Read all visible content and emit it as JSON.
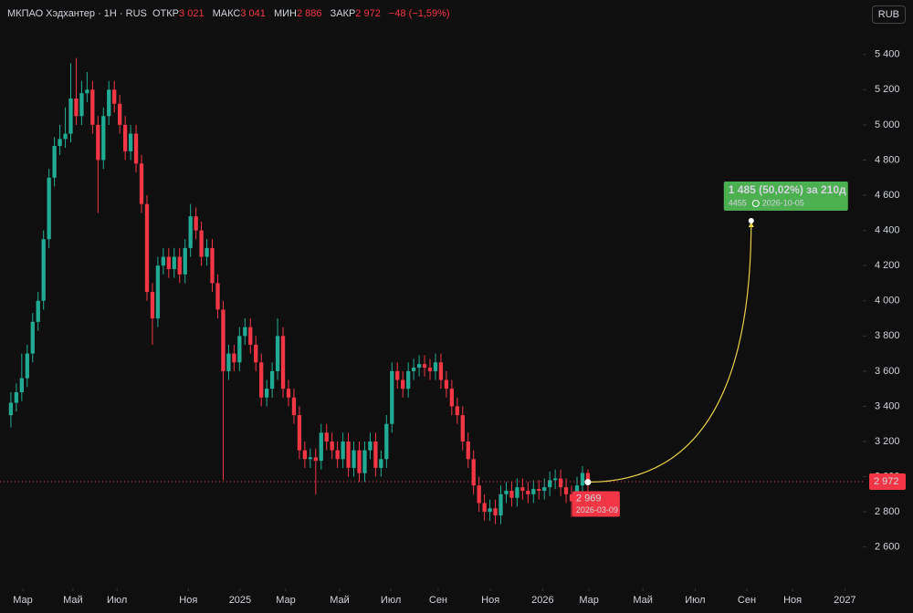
{
  "chart_data": {
    "type": "candlestick",
    "header": {
      "symbol": "МКПАО Хэдхантер · 1Н · RUS",
      "open_label": "ОТКР",
      "open": "3 021",
      "high_label": "МАКС",
      "high": "3 041",
      "low_label": "МИН",
      "low": "2 886",
      "close_label": "ЗАКР",
      "close": "2 972",
      "change": "−48 (−1,59%)"
    },
    "currency": "RUB",
    "up_color": "#22ab94",
    "down_color": "#f23645",
    "open": [
      3350,
      3420,
      3480,
      3560,
      3700,
      3880,
      4000,
      4350,
      4700,
      4880,
      4920,
      4950,
      5150,
      5050,
      5180,
      5200,
      5000,
      4800,
      5050,
      5200,
      5120,
      5000,
      4850,
      4950,
      4780,
      4550,
      4050,
      3900,
      4200,
      4250,
      4180,
      4250,
      4150,
      4300,
      4480,
      4400,
      4250,
      4300,
      4100,
      3950,
      3600,
      3700,
      3650,
      3800,
      3850,
      3750,
      3650,
      3450,
      3500,
      3600,
      3800,
      3500,
      3450,
      3350,
      3150,
      3100,
      3110,
      3090,
      3250,
      3200,
      3150,
      3100,
      3200,
      3050,
      3150,
      3020,
      3150,
      3200,
      3050,
      3100,
      3300,
      3600,
      3550,
      3500,
      3600,
      3620,
      3640,
      3620,
      3600,
      3650,
      3550,
      3500,
      3400,
      3350,
      3200,
      3100,
      2950,
      2850,
      2800,
      2820,
      2780,
      2900,
      2920,
      2880,
      2940,
      2920,
      2900,
      2930,
      2920,
      2940,
      2980,
      2990,
      2940,
      2900,
      2860,
      2950,
      3021
    ],
    "high": [
      3480,
      3530,
      3700,
      3750,
      3930,
      4050,
      4400,
      4750,
      4930,
      5000,
      5100,
      5350,
      5380,
      5250,
      5300,
      5250,
      5050,
      5100,
      5250,
      5250,
      5170,
      5050,
      5000,
      5000,
      4830,
      4600,
      4100,
      4250,
      4300,
      4300,
      4300,
      4300,
      4350,
      4550,
      4530,
      4450,
      4350,
      4350,
      4150,
      4000,
      3750,
      3750,
      3850,
      3900,
      3900,
      3800,
      3700,
      3550,
      3650,
      3900,
      3850,
      3550,
      3500,
      3400,
      3200,
      3160,
      3160,
      3300,
      3300,
      3250,
      3200,
      3250,
      3250,
      3200,
      3200,
      3200,
      3250,
      3250,
      3150,
      3350,
      3650,
      3650,
      3600,
      3650,
      3670,
      3690,
      3690,
      3670,
      3700,
      3700,
      3600,
      3550,
      3450,
      3400,
      3250,
      3150,
      3000,
      2900,
      2870,
      2870,
      2950,
      2970,
      2970,
      2990,
      2990,
      2970,
      2980,
      2980,
      2990,
      3030,
      3040,
      3040,
      2990,
      2950,
      3000,
      3060,
      3041
    ],
    "low": [
      3280,
      3370,
      3430,
      3510,
      3650,
      3830,
      3950,
      4300,
      4650,
      4830,
      4870,
      4900,
      5000,
      5000,
      5130,
      4950,
      4500,
      4750,
      5000,
      5070,
      4950,
      4800,
      4800,
      4730,
      4500,
      4000,
      3750,
      3850,
      4150,
      4130,
      4130,
      4100,
      4100,
      4250,
      4350,
      4200,
      4200,
      4050,
      3900,
      2980,
      3550,
      3600,
      3600,
      3750,
      3700,
      3600,
      3400,
      3400,
      3450,
      3550,
      3450,
      3400,
      3300,
      3100,
      3050,
      3050,
      2900,
      3040,
      3150,
      3100,
      3050,
      3050,
      3000,
      3000,
      2970,
      2970,
      3100,
      3000,
      3000,
      3050,
      3250,
      3500,
      3450,
      3450,
      3550,
      3570,
      3570,
      3550,
      3550,
      3500,
      3450,
      3350,
      3300,
      3150,
      3050,
      2900,
      2800,
      2750,
      2750,
      2730,
      2730,
      2850,
      2830,
      2830,
      2870,
      2850,
      2850,
      2870,
      2870,
      2890,
      2930,
      2890,
      2850,
      2770,
      2810,
      2900,
      2886
    ],
    "close": [
      3420,
      3480,
      3560,
      3700,
      3880,
      4000,
      4350,
      4700,
      4880,
      4920,
      4950,
      5150,
      5050,
      5180,
      5200,
      5000,
      4800,
      5050,
      5200,
      5120,
      5000,
      4850,
      4950,
      4780,
      4550,
      4050,
      3900,
      4200,
      4250,
      4180,
      4250,
      4150,
      4300,
      4480,
      4400,
      4250,
      4300,
      4100,
      3950,
      3600,
      3700,
      3650,
      3800,
      3850,
      3750,
      3650,
      3450,
      3500,
      3600,
      3800,
      3500,
      3450,
      3350,
      3150,
      3100,
      3110,
      3090,
      3250,
      3200,
      3150,
      3100,
      3200,
      3050,
      3150,
      3020,
      3150,
      3200,
      3050,
      3100,
      3300,
      3600,
      3550,
      3500,
      3600,
      3620,
      3640,
      3620,
      3600,
      3650,
      3550,
      3500,
      3400,
      3350,
      3200,
      3100,
      2950,
      2850,
      2800,
      2820,
      2780,
      2900,
      2920,
      2880,
      2940,
      2920,
      2900,
      2930,
      2920,
      2940,
      2980,
      2990,
      2940,
      2900,
      2860,
      2950,
      3021,
      2972
    ],
    "last_price_label": "2 972",
    "xlim": [
      -2,
      156.5
    ],
    "xticks": [
      {
        "value": 2.2,
        "label": "Мар"
      },
      {
        "value": 11.4,
        "label": "Май"
      },
      {
        "value": 19.5,
        "label": "Июл"
      },
      {
        "value": 32.6,
        "label": "Ноя"
      },
      {
        "value": 42.1,
        "label": "2025"
      },
      {
        "value": 50.5,
        "label": "Мар"
      },
      {
        "value": 60.4,
        "label": "Май"
      },
      {
        "value": 69.8,
        "label": "Июл"
      },
      {
        "value": 78.5,
        "label": "Сен"
      },
      {
        "value": 88.1,
        "label": "Ноя"
      },
      {
        "value": 97.7,
        "label": "2026"
      },
      {
        "value": 106.2,
        "label": "Мар"
      },
      {
        "value": 116.1,
        "label": "Май"
      },
      {
        "value": 125.7,
        "label": "Июл"
      },
      {
        "value": 135.2,
        "label": "Сен"
      },
      {
        "value": 143.6,
        "label": "Ноя"
      },
      {
        "value": 153.2,
        "label": "2027"
      }
    ],
    "ylim": [
      2365,
      5710
    ],
    "yticks": [
      {
        "value": 2600,
        "label": "2 600"
      },
      {
        "value": 2800,
        "label": "2 800"
      },
      {
        "value": 3000,
        "label": "3 000"
      },
      {
        "value": 3200,
        "label": "3 200"
      },
      {
        "value": 3400,
        "label": "3 400"
      },
      {
        "value": 3600,
        "label": "3 600"
      },
      {
        "value": 3800,
        "label": "3 800"
      },
      {
        "value": 4000,
        "label": "4 000"
      },
      {
        "value": 4200,
        "label": "4 200"
      },
      {
        "value": 4400,
        "label": "4 400"
      },
      {
        "value": 4600,
        "label": "4 600"
      },
      {
        "value": 4800,
        "label": "4 800"
      },
      {
        "value": 5000,
        "label": "5 000"
      },
      {
        "value": 5200,
        "label": "5 200"
      },
      {
        "value": 5400,
        "label": "5 400"
      }
    ],
    "projection": {
      "start_value": 2969,
      "start_label": "2 969",
      "start_date": "2026-03-09",
      "end_value": 4455,
      "end_value_label": "4455",
      "end_date": "2026-10-05",
      "change_label": "1 485 (50,02%) за 210д",
      "color": "#e8cf4a",
      "label_color": "#4caf50",
      "start_label_color": "#f23645"
    }
  }
}
